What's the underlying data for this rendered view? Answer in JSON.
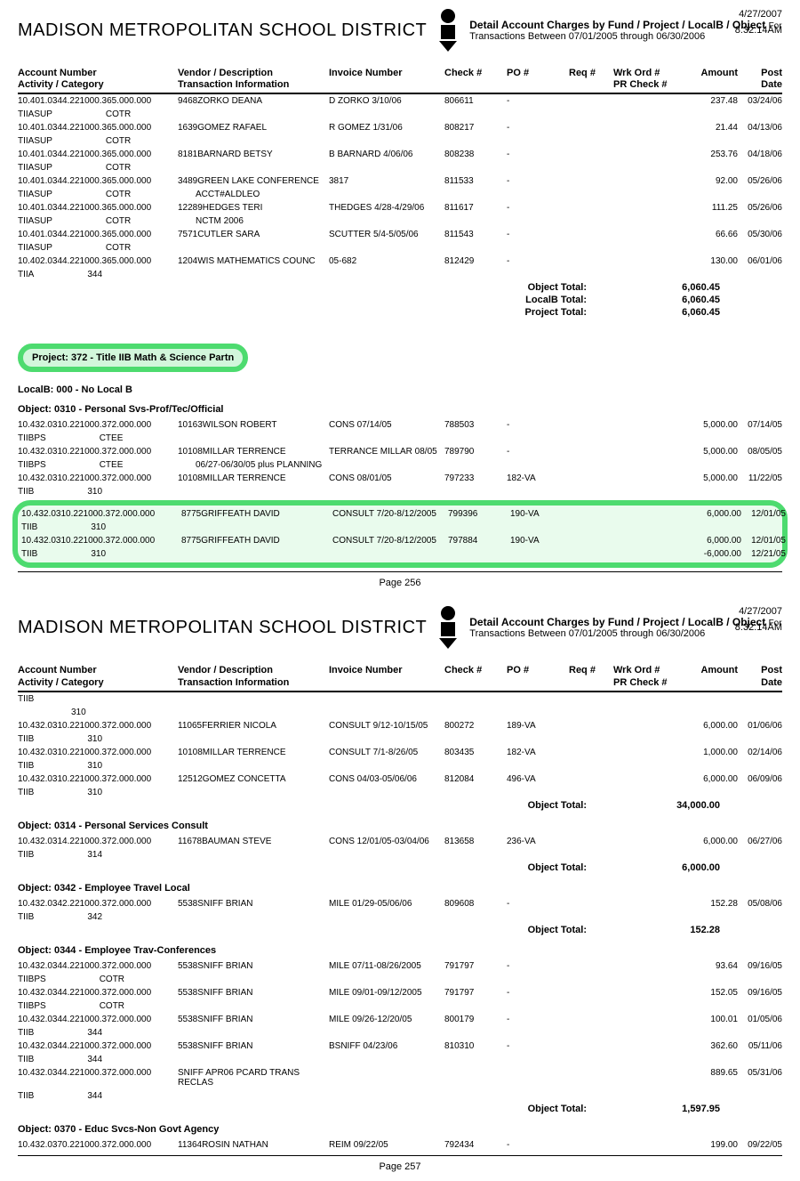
{
  "h1": {
    "date": "4/27/2007",
    "time": "8:32:14AM",
    "title": "Detail Account Charges by Fund / Project / LocalB / Object",
    "for": "For",
    "sub": "Transactions Between 07/01/2005 through 06/30/2006"
  },
  "brand": "MADISON METROPOLITAN SCHOOL DISTRICT",
  "cols": {
    "c1a": "Account Number",
    "c1b": "Activity / Category",
    "c2a": "Vendor / Description",
    "c2b": "Transaction Information",
    "c3": "Invoice Number",
    "c4": "Check #",
    "c5": "PO #",
    "c6": "Req #",
    "c7a": "Wrk Ord #",
    "c7b": "PR Check #",
    "c8": "Amount",
    "c9": "Post Date"
  },
  "p1rows": [
    {
      "a": "10.401.0344.221000.365.000.000",
      "ac": "TIIASUP",
      "cat": "COTR",
      "v": "9468ZORKO  DEANA",
      "inv": "D ZORKO 3/10/06",
      "ck": "806611",
      "po": "-",
      "amt": "237.48",
      "pd": "03/24/06"
    },
    {
      "a": "10.401.0344.221000.365.000.000",
      "ac": "TIIASUP",
      "cat": "COTR",
      "v": "1639GOMEZ RAFAEL",
      "inv": "R GOMEZ 1/31/06",
      "ck": "808217",
      "po": "-",
      "amt": "21.44",
      "pd": "04/13/06"
    },
    {
      "a": "10.401.0344.221000.365.000.000",
      "ac": "TIIASUP",
      "cat": "COTR",
      "v": "8181BARNARD BETSY",
      "inv": "B BARNARD 4/06/06",
      "ck": "808238",
      "po": "-",
      "amt": "253.76",
      "pd": "04/18/06"
    },
    {
      "a": "10.401.0344.221000.365.000.000",
      "ac": "TIIASUP",
      "cat": "COTR",
      "v": "3489GREEN LAKE CONFERENCE",
      "v2": "ACCT#ALDLEO",
      "inv": "3817",
      "ck": "811533",
      "po": "-",
      "amt": "92.00",
      "pd": "05/26/06"
    },
    {
      "a": "10.401.0344.221000.365.000.000",
      "ac": "TIIASUP",
      "cat": "COTR",
      "v": "12289HEDGES  TERI",
      "v2": "NCTM 2006",
      "inv": "THEDGES 4/28-4/29/06",
      "ck": "811617",
      "po": "-",
      "amt": "111.25",
      "pd": "05/26/06"
    },
    {
      "a": "10.401.0344.221000.365.000.000",
      "ac": "TIIASUP",
      "cat": "COTR",
      "v": "7571CUTLER SARA",
      "inv": "SCUTTER 5/4-5/05/06",
      "ck": "811543",
      "po": "-",
      "amt": "66.66",
      "pd": "05/30/06"
    },
    {
      "a": "10.402.0344.221000.365.000.000",
      "ac": "TIIA",
      "cat": "344",
      "v": "1204WIS MATHEMATICS COUNC",
      "inv": "05-682",
      "ck": "812429",
      "po": "-",
      "amt": "130.00",
      "pd": "06/01/06"
    }
  ],
  "tot1": [
    {
      "l": "Object Total:",
      "v": "6,060.45"
    },
    {
      "l": "LocalB Total:",
      "v": "6,060.45"
    },
    {
      "l": "Project Total:",
      "v": "6,060.45"
    }
  ],
  "proj": "Project: 372 - Title IIB Math & Science Partn",
  "localb": "LocalB: 000 - No Local B",
  "obj310": "Object: 0310 - Personal Svs-Prof/Tec/Official",
  "p1rows2": [
    {
      "a": "10.432.0310.221000.372.000.000",
      "ac": "TIIBPS",
      "cat": "CTEE",
      "v": "10163WILSON  ROBERT",
      "inv": "CONS 07/14/05",
      "ck": "788503",
      "po": "-",
      "amt": "5,000.00",
      "pd": "07/14/05"
    },
    {
      "a": "10.432.0310.221000.372.000.000",
      "ac": "TIIBPS",
      "cat": "CTEE",
      "v": "10108MILLAR  TERRENCE",
      "v2": "06/27-06/30/05  plus PLANNING",
      "inv": "TERRANCE MILLAR 08/05",
      "ck": "789790",
      "po": "-",
      "amt": "5,000.00",
      "pd": "08/05/05"
    },
    {
      "a": "10.432.0310.221000.372.000.000",
      "ac": "TIIB",
      "cat": "310",
      "v": "10108MILLAR  TERRENCE",
      "inv": "CONS 08/01/05",
      "ck": "797233",
      "po": "182-VA",
      "amt": "5,000.00",
      "pd": "11/22/05"
    }
  ],
  "hlrows": [
    {
      "a": "10.432.0310.221000.372.000.000",
      "ac": "TIIB",
      "cat": "310",
      "v": "8775GRIFFEATH  DAVID",
      "inv": "CONSULT 7/20-8/12/2005",
      "ck": "799396",
      "po": "190-VA",
      "amt": "6,000.00",
      "pd": "12/01/05"
    },
    {
      "a": "10.432.0310.221000.372.000.000",
      "ac": "TIIB",
      "cat": "310",
      "v": "8775GRIFFEATH  DAVID",
      "inv": "CONSULT 7/20-8/12/2005",
      "ck": "797884",
      "po": "190-VA",
      "amt": "6,000.00",
      "pd": "12/01/05",
      "amt2": "-6,000.00",
      "pd2": "12/21/05"
    }
  ],
  "pagenum1": "Page  256",
  "p2rows310": [
    {
      "a": "TIIB",
      "cat": "310"
    },
    {
      "a": "10.432.0310.221000.372.000.000",
      "ac": "TIIB",
      "cat": "310",
      "v": "11065FERRIER  NICOLA",
      "inv": "CONSULT 9/12-10/15/05",
      "ck": "800272",
      "po": "189-VA",
      "amt": "6,000.00",
      "pd": "01/06/06"
    },
    {
      "a": "10.432.0310.221000.372.000.000",
      "ac": "TIIB",
      "cat": "310",
      "v": "10108MILLAR  TERRENCE",
      "inv": "CONSULT 7/1-8/26/05",
      "ck": "803435",
      "po": "182-VA",
      "amt": "1,000.00",
      "pd": "02/14/06"
    },
    {
      "a": "10.432.0310.221000.372.000.000",
      "ac": "TIIB",
      "cat": "310",
      "v": "12512GOMEZ  CONCETTA",
      "inv": "CONS 04/03-05/06/06",
      "ck": "812084",
      "po": "496-VA",
      "amt": "6,000.00",
      "pd": "06/09/06"
    }
  ],
  "tot310": {
    "l": "Object Total:",
    "v": "34,000.00"
  },
  "obj314": "Object: 0314 - Personal Services Consult",
  "p2rows314": [
    {
      "a": "10.432.0314.221000.372.000.000",
      "ac": "TIIB",
      "cat": "314",
      "v": "11678BAUMAN  STEVE",
      "inv": "CONS 12/01/05-03/04/06",
      "ck": "813658",
      "po": "236-VA",
      "amt": "6,000.00",
      "pd": "06/27/06"
    }
  ],
  "tot314": {
    "l": "Object Total:",
    "v": "6,000.00"
  },
  "obj342": "Object: 0342 - Employee Travel Local",
  "p2rows342": [
    {
      "a": "10.432.0342.221000.372.000.000",
      "ac": "TIIB",
      "cat": "342",
      "v": "5538SNIFF BRIAN",
      "inv": "MILE 01/29-05/06/06",
      "ck": "809608",
      "po": "-",
      "amt": "152.28",
      "pd": "05/08/06"
    }
  ],
  "tot342": {
    "l": "Object Total:",
    "v": "152.28"
  },
  "obj344": "Object: 0344 - Employee Trav-Conferences",
  "p2rows344": [
    {
      "a": "10.432.0344.221000.372.000.000",
      "ac": "TIIBPS",
      "cat": "COTR",
      "v": "5538SNIFF BRIAN",
      "inv": "MILE 07/11-08/26/2005",
      "ck": "791797",
      "po": "-",
      "amt": "93.64",
      "pd": "09/16/05"
    },
    {
      "a": "10.432.0344.221000.372.000.000",
      "ac": "TIIBPS",
      "cat": "COTR",
      "v": "5538SNIFF BRIAN",
      "inv": "MILE 09/01-09/12/2005",
      "ck": "791797",
      "po": "-",
      "amt": "152.05",
      "pd": "09/16/05"
    },
    {
      "a": "10.432.0344.221000.372.000.000",
      "ac": "TIIB",
      "cat": "344",
      "v": "5538SNIFF BRIAN",
      "inv": "MILE 09/26-12/20/05",
      "ck": "800179",
      "po": "-",
      "amt": "100.01",
      "pd": "01/05/06"
    },
    {
      "a": "10.432.0344.221000.372.000.000",
      "ac": "TIIB",
      "cat": "344",
      "v": "5538SNIFF BRIAN",
      "inv": "BSNIFF 04/23/06",
      "ck": "810310",
      "po": "-",
      "amt": "362.60",
      "pd": "05/11/06"
    },
    {
      "a": "10.432.0344.221000.372.000.000",
      "ac": "TIIB",
      "cat": "344",
      "v": "SNIFF APR06 PCARD TRANS RECLAS",
      "inv": "",
      "ck": "",
      "po": "",
      "amt": "889.65",
      "pd": "05/31/06"
    }
  ],
  "tot344": {
    "l": "Object Total:",
    "v": "1,597.95"
  },
  "obj370": "Object: 0370 - Educ Svcs-Non Govt Agency",
  "p2rows370": [
    {
      "a": "10.432.0370.221000.372.000.000",
      "v": "11364ROSIN  NATHAN",
      "inv": "REIM 09/22/05",
      "ck": "792434",
      "po": "-",
      "amt": "199.00",
      "pd": "09/22/05"
    }
  ],
  "pagenum2": "Page  257"
}
